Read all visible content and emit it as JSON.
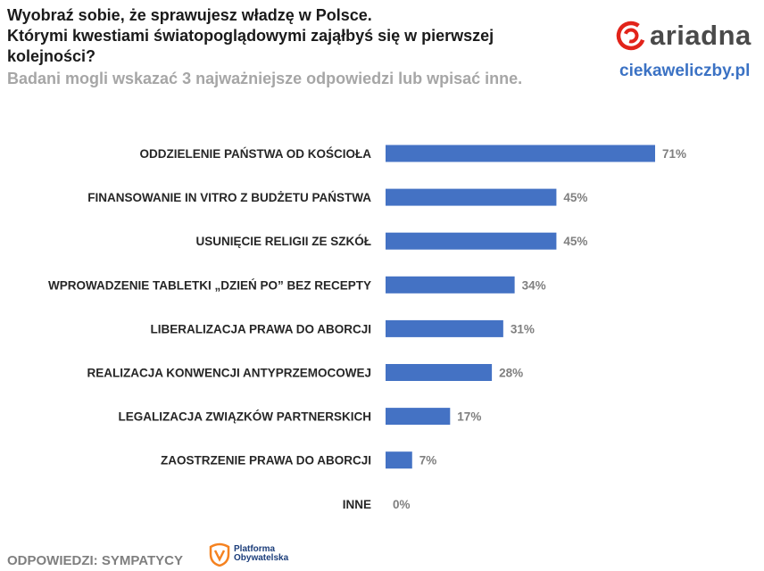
{
  "header": {
    "title_lines": [
      "Wyobraź sobie, że sprawujesz władzę w Polsce.",
      "Którymi kwestiami światopoglądowymi zająłbyś się w pierwszej",
      "kolejności?"
    ],
    "subtitle": "Badani mogli wskazać 3 najważniejsze odpowiedzi lub wpisać inne."
  },
  "branding": {
    "logo_text": "ariadna",
    "site": "ciekaweliczby.pl",
    "logo_color": "#e2231a",
    "site_color": "#3b72c4"
  },
  "footer": {
    "label": "ODPOWIEDZI: SYMPATYCY",
    "party_logo_line1": "Platforma",
    "party_logo_line2": "Obywatelska",
    "party_logo_color": "#f58220"
  },
  "chart_data": {
    "type": "bar",
    "orientation": "horizontal",
    "bar_color": "#4472c4",
    "value_suffix": "%",
    "categories": [
      "ODDZIELENIE PAŃSTWA OD KOŚCIOŁA",
      "FINANSOWANIE IN VITRO Z BUDŻETU PAŃSTWA",
      "USUNIĘCIE RELIGII ZE SZKÓŁ",
      "WPROWADZENIE TABLETKI „DZIEŃ PO” BEZ RECEPTY",
      "LIBERALIZACJA PRAWA DO ABORCJI",
      "REALIZACJA KONWENCJI ANTYPRZEMOCOWEJ",
      "LEGALIZACJA ZWIĄZKÓW PARTNERSKICH",
      "ZAOSTRZENIE PRAWA DO ABORCJI",
      "INNE"
    ],
    "values": [
      71,
      45,
      45,
      34,
      31,
      28,
      17,
      7,
      0
    ],
    "xlim": [
      0,
      71
    ]
  }
}
